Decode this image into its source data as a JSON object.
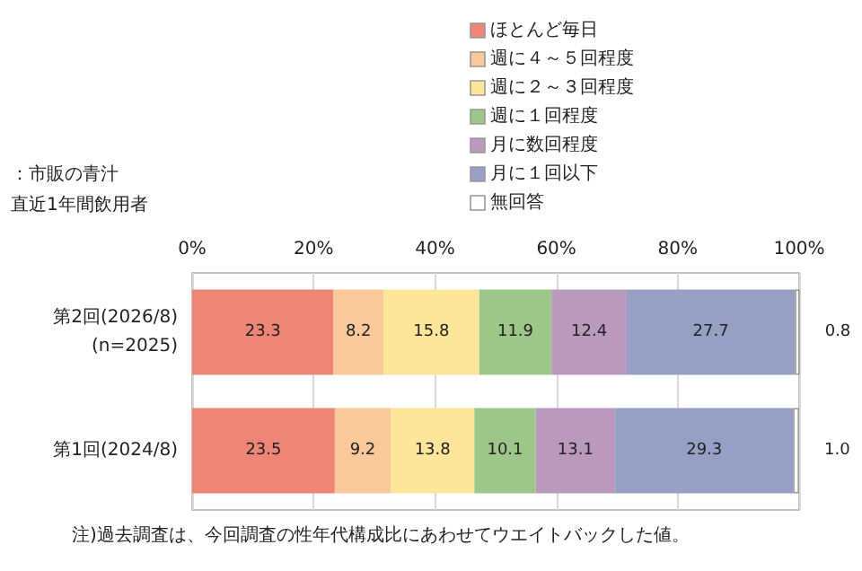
{
  "chart_data": {
    "type": "bar",
    "orientation": "horizontal",
    "stacked": true,
    "categories": [
      "第2回(2026/8)\n(n=2025)",
      "第1回(2024/8)"
    ],
    "series": [
      {
        "name": "ほとんど毎日",
        "color": "#ee8577",
        "values": [
          23.3,
          23.5
        ],
        "value_labels": [
          "23.3",
          "23.5"
        ]
      },
      {
        "name": "週に４～５回程度",
        "color": "#f9c89b",
        "values": [
          8.2,
          9.2
        ],
        "value_labels": [
          "8.2",
          "9.2"
        ]
      },
      {
        "name": "週に２～３回程度",
        "color": "#fde59a",
        "values": [
          15.8,
          13.8
        ],
        "value_labels": [
          "15.8",
          "13.8"
        ]
      },
      {
        "name": "週に１回程度",
        "color": "#9dc68a",
        "values": [
          11.9,
          10.1
        ],
        "value_labels": [
          "11.9",
          "10.1"
        ]
      },
      {
        "name": "月に数回程度",
        "color": "#b99abd",
        "values": [
          12.4,
          13.1
        ],
        "value_labels": [
          "12.4",
          "13.1"
        ]
      },
      {
        "name": "月に１回以下",
        "color": "#97a0c4",
        "values": [
          27.7,
          29.3
        ],
        "value_labels": [
          "27.7",
          "29.3"
        ]
      },
      {
        "name": "無回答",
        "color": "#ffffff",
        "values": [
          0.8,
          1.0
        ],
        "value_labels": [
          "0.8",
          "1.0"
        ]
      }
    ],
    "xlim": [
      0,
      100
    ],
    "xticks": [
      {
        "value": 0,
        "label": "0%"
      },
      {
        "value": 20,
        "label": "20%"
      },
      {
        "value": 40,
        "label": "40%"
      },
      {
        "value": 60,
        "label": "60%"
      },
      {
        "value": 80,
        "label": "80%"
      },
      {
        "value": 100,
        "label": "100%"
      }
    ],
    "grid": "x",
    "legend": "top right",
    "annotations": [
      "：市販の青汁",
      "直近1年間飲用者",
      "注)過去調査は、今回調査の性年代構成比にあわせてウエイトバックした値。"
    ]
  }
}
